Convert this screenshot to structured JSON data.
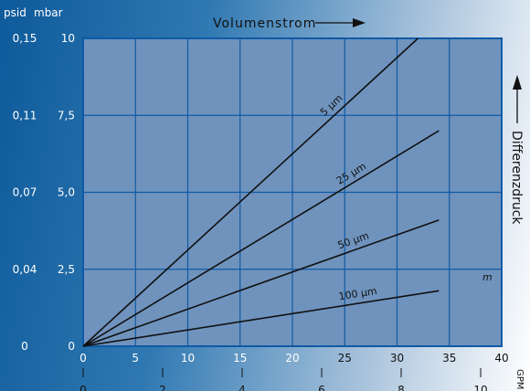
{
  "chart_data": {
    "type": "line",
    "xlabel": "Volumenstrom",
    "ylabel": "Differenzdruck",
    "x_unit_primary": "",
    "x_unit_secondary": "GPM",
    "y_unit_primary": "mbar",
    "y_unit_secondary": "psid",
    "xlim": [
      0,
      40
    ],
    "ylim": [
      0,
      10
    ],
    "x_ticks": [
      "0",
      "5",
      "10",
      "15",
      "20",
      "25",
      "30",
      "35",
      "40"
    ],
    "x_ticks_secondary": [
      "0",
      "2",
      "4",
      "6",
      "8",
      "10"
    ],
    "y_ticks": [
      "0",
      "2,5",
      "5,0",
      "7,5",
      "10"
    ],
    "y_ticks_secondary": [
      "0",
      "0,04",
      "0,07",
      "0,11",
      "0,15"
    ],
    "grid": true,
    "annotation": "m",
    "series": [
      {
        "name": "5 µm",
        "x": [
          0,
          32
        ],
        "y": [
          0,
          10
        ]
      },
      {
        "name": "25 µm",
        "x": [
          0,
          34
        ],
        "y": [
          0,
          7
        ]
      },
      {
        "name": "50 µm",
        "x": [
          0,
          34
        ],
        "y": [
          0,
          4.1
        ]
      },
      {
        "name": "100 µm",
        "x": [
          0,
          34
        ],
        "y": [
          0,
          1.8
        ]
      }
    ],
    "colors": {
      "plot_bg": "#6f93bd",
      "grid": "#0f5aa5",
      "lines": "#111111"
    }
  }
}
